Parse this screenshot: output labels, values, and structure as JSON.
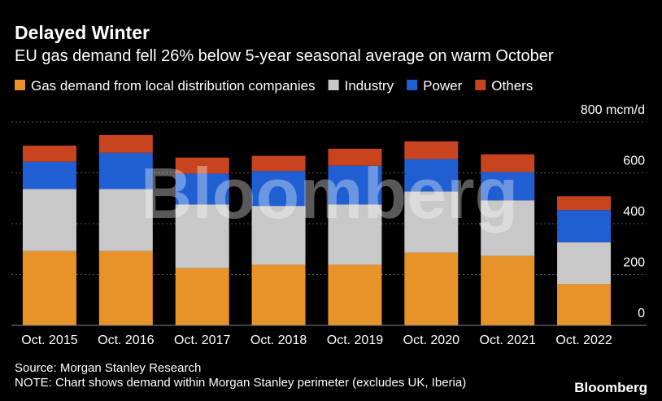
{
  "chart_data": {
    "type": "stacked-bar",
    "title": "Delayed Winter",
    "subtitle": "EU gas demand fell 26% below 5-year seasonal average on warm October",
    "categories": [
      "Oct. 2015",
      "Oct. 2016",
      "Oct. 2017",
      "Oct. 2018",
      "Oct. 2019",
      "Oct. 2020",
      "Oct. 2021",
      "Oct. 2022"
    ],
    "series": [
      {
        "name": "Gas demand from local distribution companies",
        "color": "#e8922a",
        "values": [
          292,
          292,
          225,
          238,
          238,
          286,
          273,
          162
        ]
      },
      {
        "name": "Industry",
        "color": "#c8c8c8",
        "values": [
          244,
          244,
          251,
          232,
          238,
          241,
          219,
          165
        ]
      },
      {
        "name": "Power",
        "color": "#1f5fd1",
        "values": [
          108,
          143,
          121,
          137,
          152,
          127,
          111,
          127
        ]
      },
      {
        "name": "Others",
        "color": "#c7441e",
        "values": [
          63,
          70,
          63,
          60,
          67,
          70,
          70,
          54
        ]
      }
    ],
    "ylim": [
      0,
      800
    ],
    "yticks": [
      0,
      200,
      400,
      600,
      {
        "value": 800,
        "label": "800 mcm/d"
      }
    ],
    "grid": true,
    "legend": "top",
    "watermark": "Bloomberg",
    "source": "Source: Morgan Stanley Research",
    "note": "NOTE: Chart shows demand within Morgan Stanley perimeter (excludes UK, Iberia)",
    "logo": "Bloomberg"
  }
}
